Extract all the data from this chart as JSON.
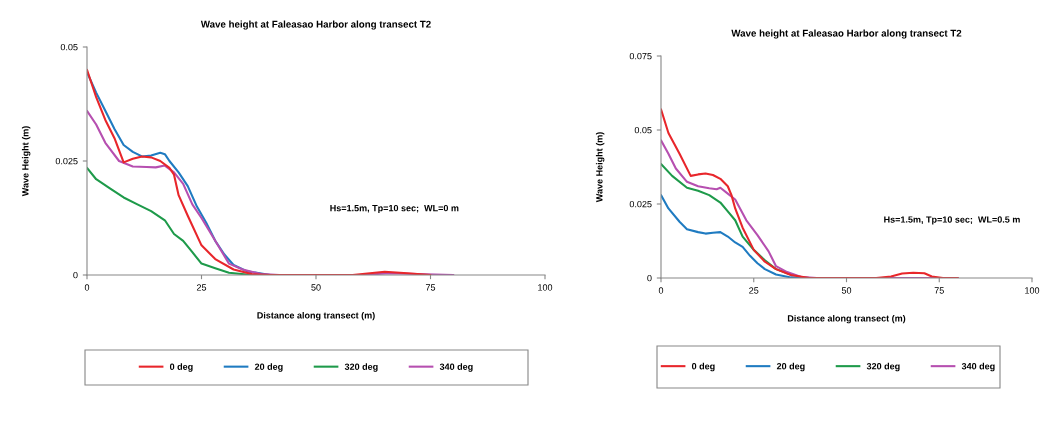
{
  "chart_data": [
    {
      "type": "line",
      "title": "Wave height at Faleasao Harbor along transect T2",
      "xlabel": "Distance along transect (m)",
      "ylabel": "Wave Height (m)",
      "xlim": [
        0,
        100
      ],
      "xticks": [
        0,
        25,
        50,
        75,
        100
      ],
      "ylim": [
        0,
        0.05
      ],
      "yticks": [
        0,
        0.025,
        0.05
      ],
      "grid": false,
      "legend": "bottom",
      "marker": "none",
      "line_style": "solid",
      "annotations": [
        "Hs=1.5m, Tp=10 sec;  WL=0 m"
      ],
      "series": [
        {
          "name": "0 deg",
          "color": "#e8262b",
          "x": [
            0,
            2,
            4,
            6,
            8,
            10,
            12,
            14,
            16,
            18,
            19,
            20,
            22,
            25,
            28,
            32,
            36,
            40,
            58,
            65,
            70,
            75
          ],
          "values": [
            0.045,
            0.039,
            0.034,
            0.03,
            0.0247,
            0.0255,
            0.026,
            0.0258,
            0.025,
            0.0235,
            0.022,
            0.0175,
            0.013,
            0.0065,
            0.0035,
            0.0012,
            0.0002,
            0,
            0,
            0.0007,
            0.0004,
            0
          ]
        },
        {
          "name": "20 deg",
          "color": "#1f7bc1",
          "x": [
            0,
            2,
            4,
            6,
            8,
            10,
            12,
            14,
            16,
            17,
            18,
            20,
            22,
            24,
            26,
            28,
            30,
            32,
            35,
            40,
            60
          ],
          "values": [
            0.0445,
            0.04,
            0.036,
            0.032,
            0.0285,
            0.027,
            0.026,
            0.0262,
            0.0268,
            0.0265,
            0.025,
            0.0225,
            0.0195,
            0.015,
            0.0115,
            0.0075,
            0.0045,
            0.0022,
            0.0008,
            0,
            0
          ]
        },
        {
          "name": "320 deg",
          "color": "#1e9a4a",
          "x": [
            0,
            2,
            5,
            8,
            11,
            14,
            17,
            19,
            21,
            23,
            25,
            28,
            31,
            36
          ],
          "values": [
            0.0235,
            0.021,
            0.019,
            0.017,
            0.0155,
            0.014,
            0.012,
            0.009,
            0.0075,
            0.005,
            0.0025,
            0.0015,
            0.0005,
            0
          ]
        },
        {
          "name": "340 deg",
          "color": "#b64fb0",
          "x": [
            0,
            2,
            4,
            7,
            10,
            13,
            15,
            17,
            19,
            21,
            23,
            25,
            28,
            31,
            34,
            38,
            42,
            60,
            66,
            80
          ],
          "values": [
            0.036,
            0.033,
            0.029,
            0.025,
            0.0238,
            0.0237,
            0.0236,
            0.024,
            0.0225,
            0.02,
            0.0155,
            0.0125,
            0.0075,
            0.0025,
            0.0012,
            0.0002,
            0,
            0,
            0.0004,
            0
          ]
        }
      ]
    },
    {
      "type": "line",
      "title": "Wave height at Faleasao Harbor along transect T2",
      "xlabel": "Distance along transect (m)",
      "ylabel": "Wave Height (m)",
      "xlim": [
        0,
        100
      ],
      "xticks": [
        0,
        25,
        50,
        75,
        100
      ],
      "ylim": [
        0,
        0.075
      ],
      "yticks": [
        0,
        0.025,
        0.05,
        0.075
      ],
      "grid": false,
      "legend": "bottom",
      "marker": "none",
      "line_style": "solid",
      "annotations": [
        "Hs=1.5m, Tp=10 sec;  WL=0.5 m"
      ],
      "series": [
        {
          "name": "0 deg",
          "color": "#e8262b",
          "x": [
            0,
            2,
            5,
            8,
            10,
            12,
            14,
            16,
            18,
            19,
            20,
            22,
            25,
            28,
            31,
            35,
            40,
            58,
            62,
            65,
            68,
            71,
            73,
            76,
            80
          ],
          "values": [
            0.057,
            0.049,
            0.042,
            0.0345,
            0.035,
            0.0353,
            0.0348,
            0.0335,
            0.031,
            0.028,
            0.0235,
            0.017,
            0.0095,
            0.0055,
            0.003,
            0.001,
            0,
            0,
            0.0005,
            0.0015,
            0.0018,
            0.0016,
            0.0005,
            0,
            0
          ]
        },
        {
          "name": "20 deg",
          "color": "#1f7bc1",
          "x": [
            0,
            2,
            5,
            7,
            10,
            12,
            14,
            16,
            18,
            20,
            22,
            24,
            26,
            28,
            31,
            35,
            40,
            80
          ],
          "values": [
            0.028,
            0.0235,
            0.019,
            0.0165,
            0.0155,
            0.015,
            0.0153,
            0.0155,
            0.014,
            0.012,
            0.0105,
            0.0075,
            0.005,
            0.003,
            0.0012,
            0.0002,
            0,
            0
          ]
        },
        {
          "name": "320 deg",
          "color": "#1e9a4a",
          "x": [
            0,
            3,
            7,
            10,
            13,
            16,
            18,
            20,
            22,
            25,
            28,
            31,
            35
          ],
          "values": [
            0.0385,
            0.0345,
            0.0305,
            0.0295,
            0.028,
            0.0255,
            0.0225,
            0.0195,
            0.014,
            0.0095,
            0.006,
            0.003,
            0.0012
          ]
        },
        {
          "name": "340 deg",
          "color": "#b64fb0",
          "x": [
            0,
            2,
            4,
            7,
            10,
            13,
            15,
            16,
            18,
            20,
            23,
            26,
            29,
            31,
            34,
            38,
            42,
            80
          ],
          "values": [
            0.0465,
            0.042,
            0.037,
            0.0325,
            0.031,
            0.0303,
            0.03,
            0.0305,
            0.0285,
            0.0265,
            0.0195,
            0.0145,
            0.009,
            0.004,
            0.002,
            0.0003,
            0,
            0
          ]
        }
      ]
    }
  ]
}
